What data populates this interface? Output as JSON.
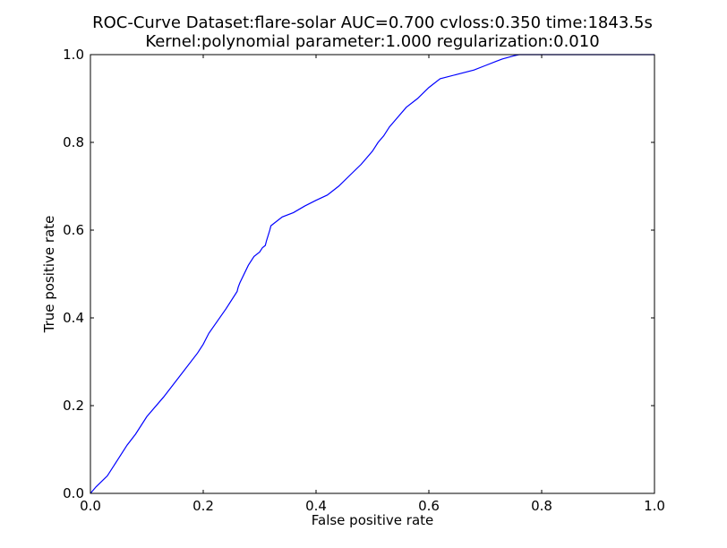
{
  "chart_data": {
    "type": "line",
    "title_lines": [
      "ROC-Curve Dataset:flare-solar AUC=0.700 cvloss:0.350 time:1843.5s",
      "Kernel:polynomial parameter:1.000 regularization:0.010"
    ],
    "xlabel": "False positive rate",
    "ylabel": "True positive rate",
    "xlim": [
      0.0,
      1.0
    ],
    "ylim": [
      0.0,
      1.0
    ],
    "xticks": [
      "0.0",
      "0.2",
      "0.4",
      "0.6",
      "0.8",
      "1.0"
    ],
    "yticks": [
      "0.0",
      "0.2",
      "0.4",
      "0.6",
      "0.8",
      "1.0"
    ],
    "grid": false,
    "legend": "none",
    "series": [
      {
        "color": "#0000ff",
        "x": [
          0.0,
          0.01,
          0.03,
          0.05,
          0.065,
          0.08,
          0.1,
          0.13,
          0.16,
          0.19,
          0.2,
          0.21,
          0.24,
          0.26,
          0.262,
          0.265,
          0.28,
          0.29,
          0.3,
          0.305,
          0.31,
          0.312,
          0.318,
          0.32,
          0.34,
          0.36,
          0.38,
          0.4,
          0.42,
          0.44,
          0.46,
          0.48,
          0.5,
          0.51,
          0.52,
          0.53,
          0.54,
          0.56,
          0.58,
          0.6,
          0.62,
          0.65,
          0.68,
          0.7,
          0.72,
          0.73,
          0.75,
          0.76,
          0.8,
          1.0
        ],
        "y": [
          0.0,
          0.015,
          0.04,
          0.08,
          0.11,
          0.135,
          0.175,
          0.22,
          0.27,
          0.32,
          0.34,
          0.365,
          0.42,
          0.46,
          0.47,
          0.48,
          0.52,
          0.54,
          0.55,
          0.56,
          0.565,
          0.575,
          0.6,
          0.61,
          0.63,
          0.64,
          0.655,
          0.668,
          0.68,
          0.7,
          0.725,
          0.75,
          0.78,
          0.8,
          0.815,
          0.835,
          0.85,
          0.88,
          0.9,
          0.925,
          0.945,
          0.955,
          0.965,
          0.975,
          0.985,
          0.99,
          0.997,
          1.0,
          1.0,
          1.0
        ]
      }
    ]
  }
}
